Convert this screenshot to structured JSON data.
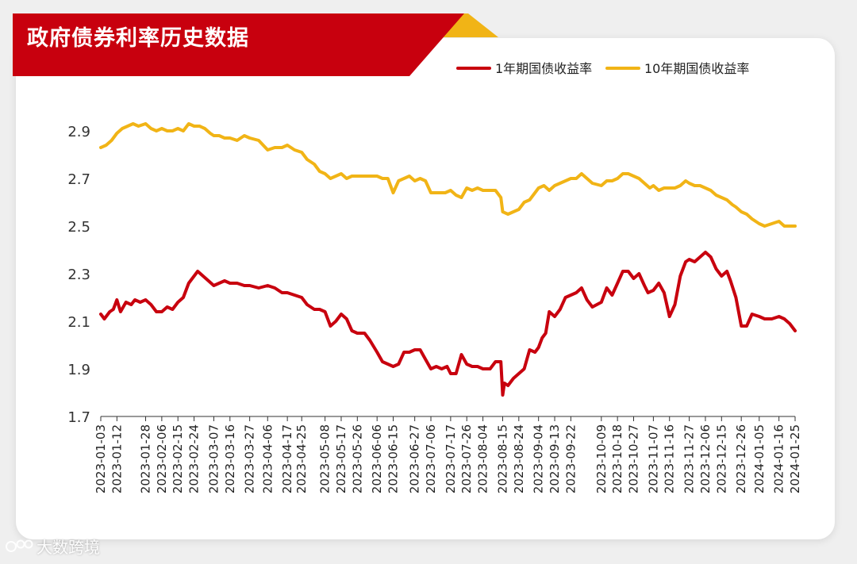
{
  "header": {
    "title": "政府债券利率历史数据"
  },
  "watermark": {
    "text": "大数跨境"
  },
  "colors": {
    "banner": "#c8000e",
    "banner_accent": "#f1b416",
    "series_1y": "#c8000e",
    "series_10y": "#f1b416"
  },
  "chart_data": {
    "type": "line",
    "title": "",
    "xlabel": "",
    "ylabel": "",
    "ylim": [
      1.7,
      2.9
    ],
    "yticks": [
      1.7,
      1.9,
      2.1,
      2.3,
      2.5,
      2.7,
      2.9
    ],
    "legend_position": "top-right",
    "grid": false,
    "x_tick_labels": [
      "2023-01-03",
      "2023-01-12",
      "2023-01-28",
      "2023-02-06",
      "2023-02-15",
      "2023-02-24",
      "2023-03-07",
      "2023-03-16",
      "2023-03-27",
      "2023-04-06",
      "2023-04-17",
      "2023-04-25",
      "2023-05-08",
      "2023-05-17",
      "2023-05-26",
      "2023-06-06",
      "2023-06-15",
      "2023-06-27",
      "2023-07-06",
      "2023-07-17",
      "2023-07-26",
      "2023-08-04",
      "2023-08-15",
      "2023-08-24",
      "2023-09-04",
      "2023-09-13",
      "2023-09-22",
      "2023-10-09",
      "2023-10-18",
      "2023-10-27",
      "2023-11-07",
      "2023-11-16",
      "2023-11-27",
      "2023-12-06",
      "2023-12-15",
      "2023-12-26",
      "2024-01-05",
      "2024-01-16",
      "2024-01-25"
    ],
    "series": [
      {
        "name": "1年期国债收益率",
        "color": "#c8000e",
        "points": [
          [
            "2023-01-03",
            2.13
          ],
          [
            "2023-01-05",
            2.11
          ],
          [
            "2023-01-08",
            2.14
          ],
          [
            "2023-01-10",
            2.15
          ],
          [
            "2023-01-12",
            2.19
          ],
          [
            "2023-01-14",
            2.14
          ],
          [
            "2023-01-17",
            2.18
          ],
          [
            "2023-01-20",
            2.17
          ],
          [
            "2023-01-22",
            2.19
          ],
          [
            "2023-01-25",
            2.18
          ],
          [
            "2023-01-28",
            2.19
          ],
          [
            "2023-01-31",
            2.17
          ],
          [
            "2023-02-03",
            2.14
          ],
          [
            "2023-02-06",
            2.14
          ],
          [
            "2023-02-09",
            2.16
          ],
          [
            "2023-02-12",
            2.15
          ],
          [
            "2023-02-15",
            2.18
          ],
          [
            "2023-02-18",
            2.2
          ],
          [
            "2023-02-21",
            2.26
          ],
          [
            "2023-02-24",
            2.29
          ],
          [
            "2023-02-26",
            2.31
          ],
          [
            "2023-03-01",
            2.29
          ],
          [
            "2023-03-04",
            2.27
          ],
          [
            "2023-03-07",
            2.25
          ],
          [
            "2023-03-10",
            2.26
          ],
          [
            "2023-03-13",
            2.27
          ],
          [
            "2023-03-16",
            2.26
          ],
          [
            "2023-03-20",
            2.26
          ],
          [
            "2023-03-24",
            2.25
          ],
          [
            "2023-03-27",
            2.25
          ],
          [
            "2023-04-01",
            2.24
          ],
          [
            "2023-04-06",
            2.25
          ],
          [
            "2023-04-10",
            2.24
          ],
          [
            "2023-04-14",
            2.22
          ],
          [
            "2023-04-17",
            2.22
          ],
          [
            "2023-04-21",
            2.21
          ],
          [
            "2023-04-25",
            2.2
          ],
          [
            "2023-04-28",
            2.17
          ],
          [
            "2023-05-02",
            2.15
          ],
          [
            "2023-05-05",
            2.15
          ],
          [
            "2023-05-08",
            2.14
          ],
          [
            "2023-05-11",
            2.08
          ],
          [
            "2023-05-14",
            2.1
          ],
          [
            "2023-05-17",
            2.13
          ],
          [
            "2023-05-20",
            2.11
          ],
          [
            "2023-05-23",
            2.06
          ],
          [
            "2023-05-26",
            2.05
          ],
          [
            "2023-05-30",
            2.05
          ],
          [
            "2023-06-02",
            2.02
          ],
          [
            "2023-06-06",
            1.97
          ],
          [
            "2023-06-09",
            1.93
          ],
          [
            "2023-06-12",
            1.92
          ],
          [
            "2023-06-15",
            1.91
          ],
          [
            "2023-06-18",
            1.92
          ],
          [
            "2023-06-21",
            1.97
          ],
          [
            "2023-06-24",
            1.97
          ],
          [
            "2023-06-27",
            1.98
          ],
          [
            "2023-06-30",
            1.98
          ],
          [
            "2023-07-03",
            1.94
          ],
          [
            "2023-07-06",
            1.9
          ],
          [
            "2023-07-09",
            1.91
          ],
          [
            "2023-07-12",
            1.9
          ],
          [
            "2023-07-15",
            1.91
          ],
          [
            "2023-07-17",
            1.88
          ],
          [
            "2023-07-20",
            1.88
          ],
          [
            "2023-07-23",
            1.96
          ],
          [
            "2023-07-26",
            1.92
          ],
          [
            "2023-07-29",
            1.91
          ],
          [
            "2023-08-01",
            1.91
          ],
          [
            "2023-08-04",
            1.9
          ],
          [
            "2023-08-08",
            1.9
          ],
          [
            "2023-08-11",
            1.93
          ],
          [
            "2023-08-14",
            1.93
          ],
          [
            "2023-08-15",
            1.79
          ],
          [
            "2023-08-16",
            1.84
          ],
          [
            "2023-08-18",
            1.83
          ],
          [
            "2023-08-21",
            1.86
          ],
          [
            "2023-08-24",
            1.88
          ],
          [
            "2023-08-27",
            1.9
          ],
          [
            "2023-08-30",
            1.98
          ],
          [
            "2023-09-02",
            1.97
          ],
          [
            "2023-09-04",
            1.99
          ],
          [
            "2023-09-06",
            2.03
          ],
          [
            "2023-09-08",
            2.05
          ],
          [
            "2023-09-10",
            2.14
          ],
          [
            "2023-09-13",
            2.12
          ],
          [
            "2023-09-16",
            2.15
          ],
          [
            "2023-09-19",
            2.2
          ],
          [
            "2023-09-22",
            2.21
          ],
          [
            "2023-09-25",
            2.22
          ],
          [
            "2023-09-28",
            2.24
          ],
          [
            "2023-10-01",
            2.19
          ],
          [
            "2023-10-04",
            2.16
          ],
          [
            "2023-10-09",
            2.18
          ],
          [
            "2023-10-12",
            2.24
          ],
          [
            "2023-10-15",
            2.21
          ],
          [
            "2023-10-18",
            2.26
          ],
          [
            "2023-10-21",
            2.31
          ],
          [
            "2023-10-24",
            2.31
          ],
          [
            "2023-10-27",
            2.28
          ],
          [
            "2023-10-30",
            2.3
          ],
          [
            "2023-11-02",
            2.25
          ],
          [
            "2023-11-04",
            2.22
          ],
          [
            "2023-11-07",
            2.23
          ],
          [
            "2023-11-10",
            2.26
          ],
          [
            "2023-11-13",
            2.22
          ],
          [
            "2023-11-16",
            2.12
          ],
          [
            "2023-11-19",
            2.17
          ],
          [
            "2023-11-22",
            2.29
          ],
          [
            "2023-11-25",
            2.35
          ],
          [
            "2023-11-27",
            2.36
          ],
          [
            "2023-11-30",
            2.35
          ],
          [
            "2023-12-03",
            2.37
          ],
          [
            "2023-12-06",
            2.39
          ],
          [
            "2023-12-09",
            2.37
          ],
          [
            "2023-12-12",
            2.32
          ],
          [
            "2023-12-15",
            2.29
          ],
          [
            "2023-12-18",
            2.31
          ],
          [
            "2023-12-20",
            2.27
          ],
          [
            "2023-12-23",
            2.2
          ],
          [
            "2023-12-26",
            2.08
          ],
          [
            "2023-12-29",
            2.08
          ],
          [
            "2024-01-01",
            2.13
          ],
          [
            "2024-01-05",
            2.12
          ],
          [
            "2024-01-08",
            2.11
          ],
          [
            "2024-01-12",
            2.11
          ],
          [
            "2024-01-16",
            2.12
          ],
          [
            "2024-01-19",
            2.11
          ],
          [
            "2024-01-22",
            2.09
          ],
          [
            "2024-01-25",
            2.06
          ]
        ]
      },
      {
        "name": "10年期国债收益率",
        "color": "#f1b416",
        "points": [
          [
            "2023-01-03",
            2.83
          ],
          [
            "2023-01-06",
            2.84
          ],
          [
            "2023-01-09",
            2.86
          ],
          [
            "2023-01-12",
            2.89
          ],
          [
            "2023-01-15",
            2.91
          ],
          [
            "2023-01-18",
            2.92
          ],
          [
            "2023-01-21",
            2.93
          ],
          [
            "2023-01-24",
            2.92
          ],
          [
            "2023-01-28",
            2.93
          ],
          [
            "2023-01-31",
            2.91
          ],
          [
            "2023-02-03",
            2.9
          ],
          [
            "2023-02-06",
            2.91
          ],
          [
            "2023-02-09",
            2.9
          ],
          [
            "2023-02-12",
            2.9
          ],
          [
            "2023-02-15",
            2.91
          ],
          [
            "2023-02-18",
            2.9
          ],
          [
            "2023-02-21",
            2.93
          ],
          [
            "2023-02-24",
            2.92
          ],
          [
            "2023-02-27",
            2.92
          ],
          [
            "2023-03-02",
            2.91
          ],
          [
            "2023-03-05",
            2.89
          ],
          [
            "2023-03-07",
            2.88
          ],
          [
            "2023-03-10",
            2.88
          ],
          [
            "2023-03-13",
            2.87
          ],
          [
            "2023-03-16",
            2.87
          ],
          [
            "2023-03-20",
            2.86
          ],
          [
            "2023-03-24",
            2.88
          ],
          [
            "2023-03-27",
            2.87
          ],
          [
            "2023-04-01",
            2.86
          ],
          [
            "2023-04-06",
            2.82
          ],
          [
            "2023-04-10",
            2.83
          ],
          [
            "2023-04-14",
            2.83
          ],
          [
            "2023-04-17",
            2.84
          ],
          [
            "2023-04-21",
            2.82
          ],
          [
            "2023-04-25",
            2.81
          ],
          [
            "2023-04-28",
            2.78
          ],
          [
            "2023-05-02",
            2.76
          ],
          [
            "2023-05-05",
            2.73
          ],
          [
            "2023-05-08",
            2.72
          ],
          [
            "2023-05-11",
            2.7
          ],
          [
            "2023-05-14",
            2.71
          ],
          [
            "2023-05-17",
            2.72
          ],
          [
            "2023-05-20",
            2.7
          ],
          [
            "2023-05-23",
            2.71
          ],
          [
            "2023-05-26",
            2.71
          ],
          [
            "2023-05-30",
            2.71
          ],
          [
            "2023-06-02",
            2.71
          ],
          [
            "2023-06-06",
            2.71
          ],
          [
            "2023-06-09",
            2.7
          ],
          [
            "2023-06-12",
            2.7
          ],
          [
            "2023-06-15",
            2.64
          ],
          [
            "2023-06-18",
            2.69
          ],
          [
            "2023-06-21",
            2.7
          ],
          [
            "2023-06-24",
            2.71
          ],
          [
            "2023-06-27",
            2.69
          ],
          [
            "2023-06-30",
            2.7
          ],
          [
            "2023-07-03",
            2.69
          ],
          [
            "2023-07-06",
            2.64
          ],
          [
            "2023-07-10",
            2.64
          ],
          [
            "2023-07-14",
            2.64
          ],
          [
            "2023-07-17",
            2.65
          ],
          [
            "2023-07-20",
            2.63
          ],
          [
            "2023-07-23",
            2.62
          ],
          [
            "2023-07-26",
            2.66
          ],
          [
            "2023-07-29",
            2.65
          ],
          [
            "2023-08-01",
            2.66
          ],
          [
            "2023-08-04",
            2.65
          ],
          [
            "2023-08-08",
            2.65
          ],
          [
            "2023-08-11",
            2.65
          ],
          [
            "2023-08-14",
            2.62
          ],
          [
            "2023-08-15",
            2.56
          ],
          [
            "2023-08-18",
            2.55
          ],
          [
            "2023-08-21",
            2.56
          ],
          [
            "2023-08-24",
            2.57
          ],
          [
            "2023-08-27",
            2.6
          ],
          [
            "2023-08-30",
            2.61
          ],
          [
            "2023-09-02",
            2.64
          ],
          [
            "2023-09-04",
            2.66
          ],
          [
            "2023-09-07",
            2.67
          ],
          [
            "2023-09-10",
            2.65
          ],
          [
            "2023-09-13",
            2.67
          ],
          [
            "2023-09-16",
            2.68
          ],
          [
            "2023-09-19",
            2.69
          ],
          [
            "2023-09-22",
            2.7
          ],
          [
            "2023-09-25",
            2.7
          ],
          [
            "2023-09-28",
            2.72
          ],
          [
            "2023-10-01",
            2.7
          ],
          [
            "2023-10-04",
            2.68
          ],
          [
            "2023-10-09",
            2.67
          ],
          [
            "2023-10-12",
            2.69
          ],
          [
            "2023-10-15",
            2.69
          ],
          [
            "2023-10-18",
            2.7
          ],
          [
            "2023-10-21",
            2.72
          ],
          [
            "2023-10-24",
            2.72
          ],
          [
            "2023-10-27",
            2.71
          ],
          [
            "2023-10-30",
            2.7
          ],
          [
            "2023-11-02",
            2.68
          ],
          [
            "2023-11-05",
            2.66
          ],
          [
            "2023-11-07",
            2.67
          ],
          [
            "2023-11-10",
            2.65
          ],
          [
            "2023-11-13",
            2.66
          ],
          [
            "2023-11-16",
            2.66
          ],
          [
            "2023-11-19",
            2.66
          ],
          [
            "2023-11-22",
            2.67
          ],
          [
            "2023-11-25",
            2.69
          ],
          [
            "2023-11-27",
            2.68
          ],
          [
            "2023-11-30",
            2.67
          ],
          [
            "2023-12-03",
            2.67
          ],
          [
            "2023-12-06",
            2.66
          ],
          [
            "2023-12-09",
            2.65
          ],
          [
            "2023-12-12",
            2.63
          ],
          [
            "2023-12-15",
            2.62
          ],
          [
            "2023-12-18",
            2.61
          ],
          [
            "2023-12-21",
            2.59
          ],
          [
            "2023-12-23",
            2.58
          ],
          [
            "2023-12-26",
            2.56
          ],
          [
            "2023-12-29",
            2.55
          ],
          [
            "2024-01-01",
            2.53
          ],
          [
            "2024-01-05",
            2.51
          ],
          [
            "2024-01-08",
            2.5
          ],
          [
            "2024-01-12",
            2.51
          ],
          [
            "2024-01-16",
            2.52
          ],
          [
            "2024-01-19",
            2.5
          ],
          [
            "2024-01-22",
            2.5
          ],
          [
            "2024-01-25",
            2.5
          ]
        ]
      }
    ]
  }
}
